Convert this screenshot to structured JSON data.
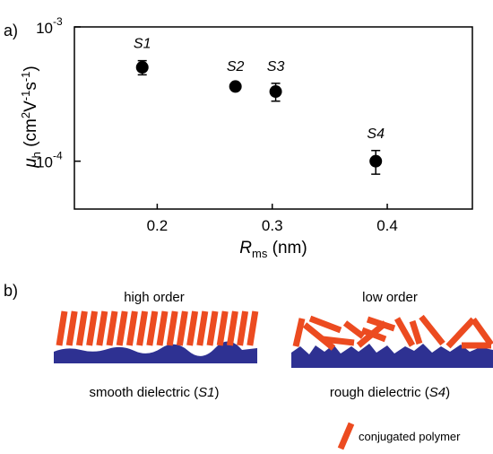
{
  "chart_data": {
    "type": "scatter",
    "panel_label": "a)",
    "x": [
      0.187,
      0.268,
      0.303,
      0.39
    ],
    "values": [
      0.0005,
      0.00036,
      0.00033,
      0.0001
    ],
    "errors": [
      6e-05,
      2e-05,
      5e-05,
      2e-05
    ],
    "point_labels": [
      "S1",
      "S2",
      "S3",
      "S4"
    ],
    "color": "#000000",
    "xlim": [
      0.128,
      0.474
    ],
    "xticks": [
      0.2,
      0.3,
      0.4
    ],
    "ylim": [
      4.4e-05,
      0.001
    ],
    "log_y": true,
    "yticks": [
      {
        "value": 0.001,
        "label": "10",
        "exponent": "-3"
      },
      {
        "value": 0.0001,
        "label": "10",
        "exponent": "-4"
      }
    ],
    "xlabel_parts": [
      "R",
      "ms",
      " (nm)"
    ],
    "ylabel_parts": [
      "μ",
      "h",
      " (cm",
      "2",
      "V",
      "-1",
      "s",
      "-1",
      ")"
    ]
  },
  "diagram": {
    "panel_label": "b)",
    "left_title": "high order",
    "right_title": "low order",
    "left_caption": [
      "smooth dielectric (",
      "S1",
      ")"
    ],
    "right_caption": [
      "rough dielectric (",
      "S4",
      ")"
    ],
    "legend": "conjugated polymer"
  }
}
